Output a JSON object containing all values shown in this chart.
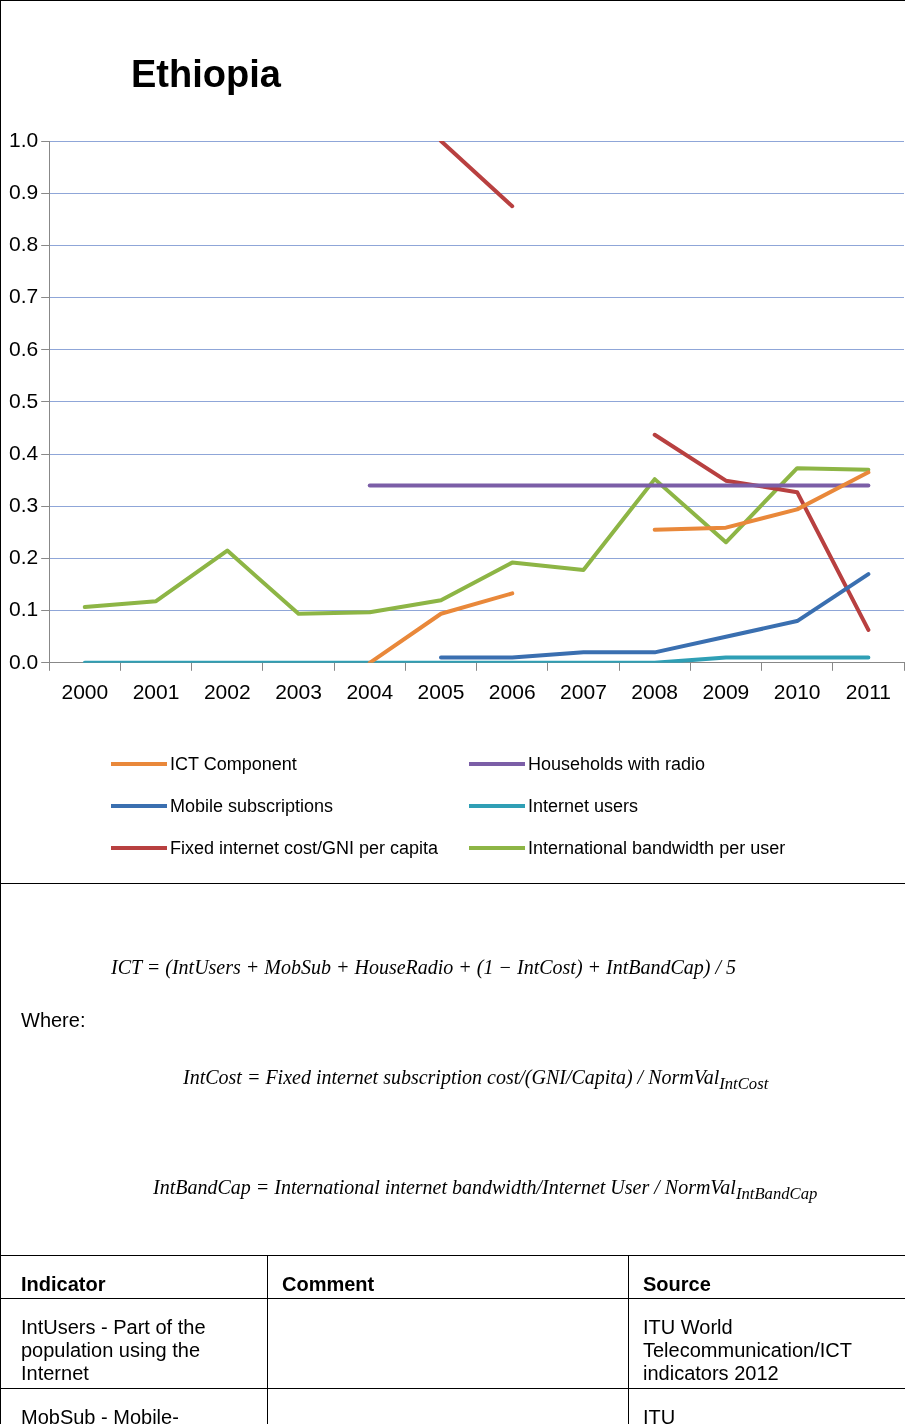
{
  "chart_data": {
    "type": "line",
    "title": "Ethiopia",
    "categories": [
      "2000",
      "2001",
      "2002",
      "2003",
      "2004",
      "2005",
      "2006",
      "2007",
      "2008",
      "2009",
      "2010",
      "2011"
    ],
    "ylim": [
      0,
      1
    ],
    "yticks": [
      {
        "value": 0,
        "label": "0.0"
      },
      {
        "value": 0.1,
        "label": "0.1"
      },
      {
        "value": 0.2,
        "label": "0.2"
      },
      {
        "value": 0.3,
        "label": "0.3"
      },
      {
        "value": 0.4,
        "label": "0.4"
      },
      {
        "value": 0.5,
        "label": "0.5"
      },
      {
        "value": 0.6,
        "label": "0.6"
      },
      {
        "value": 0.7,
        "label": "0.7"
      },
      {
        "value": 0.8,
        "label": "0.8"
      },
      {
        "value": 0.9,
        "label": "0.9"
      },
      {
        "value": 1,
        "label": "1.0"
      }
    ],
    "grid": "y",
    "legend": "bottom",
    "marker": "none",
    "line_style": "solid",
    "series": [
      {
        "name": "ICT Component",
        "color": "#e9883a",
        "values": [
          null,
          null,
          null,
          null,
          0,
          0.094,
          0.133,
          null,
          0.255,
          0.259,
          0.294,
          0.365
        ]
      },
      {
        "name": "Households with radio",
        "color": "#7b5ea7",
        "values": [
          null,
          null,
          null,
          null,
          0.34,
          0.34,
          0.34,
          0.34,
          0.34,
          0.34,
          0.34,
          0.34
        ]
      },
      {
        "name": "Mobile subscriptions",
        "color": "#3a6fb0",
        "values": [
          null,
          null,
          null,
          null,
          null,
          0.01,
          0.01,
          0.02,
          0.02,
          0.05,
          0.08,
          0.17
        ]
      },
      {
        "name": "Internet users",
        "color": "#2f9fb5",
        "values": [
          0,
          0,
          0,
          0,
          0,
          0,
          0,
          0,
          0,
          0.01,
          0.01,
          0.01
        ]
      },
      {
        "name": "Fixed internet cost/GNI per capita",
        "color": "#b84040",
        "values": [
          null,
          null,
          null,
          null,
          null,
          1,
          0.875,
          null,
          0.437,
          0.349,
          0.327,
          0.063
        ]
      },
      {
        "name": "International bandwidth per user",
        "color": "#8db545",
        "values": [
          0.107,
          0.118,
          0.215,
          0.094,
          0.097,
          0.12,
          0.192,
          0.178,
          0.352,
          0.231,
          0.373,
          0.37
        ]
      }
    ],
    "annotations": [
      "ICT = (IntUsers + MobSub + HouseRadio + (1 − IntCost) + IntBandCap) / 5",
      "Where:",
      "IntCost = Fixed internet subscription cost/(GNI/Capita) / NormVal$_{IntCost}$",
      "IntBandCap = International internet bandwidth/Internet User / NormVal$_{IntBandCap}$",
      "Indicator",
      "Comment",
      "Source",
      "IntUsers - Part of the population using the Internet",
      "ITU World Telecommunication/ICT indicators 2012",
      "MobSub - Mobile-",
      "ITU"
    ]
  }
}
